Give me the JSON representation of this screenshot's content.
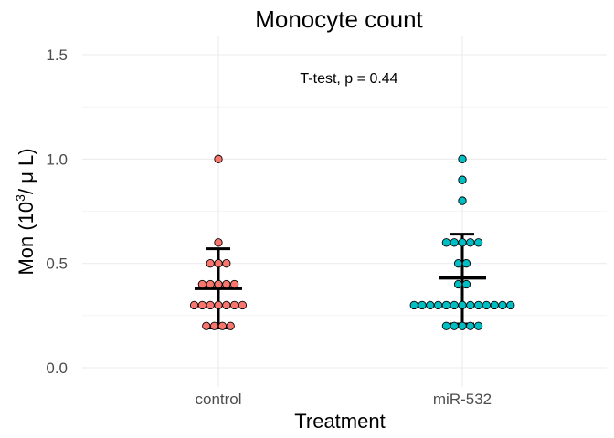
{
  "chart_data": {
    "type": "scatter",
    "title": "Monocyte count",
    "xlabel": "Treatment",
    "ylabel": {
      "prefix": "Mon (10",
      "sup": "3",
      "suffix": "/ μ L)"
    },
    "annotation": "T-test, p = 0.44",
    "categories": [
      "control",
      "miR-532"
    ],
    "ylim": [
      0,
      1.5
    ],
    "yticks": [
      "0.0",
      "0.5",
      "1.0",
      "1.5"
    ],
    "grid": true,
    "legend": "none",
    "colors": {
      "control": "#F8766D",
      "miR-532": "#00BFC4",
      "summary": "#000000",
      "outline": "#000000"
    },
    "series": [
      {
        "category": "control",
        "values": [
          0.2,
          0.2,
          0.2,
          0.2,
          0.3,
          0.3,
          0.3,
          0.3,
          0.3,
          0.3,
          0.3,
          0.4,
          0.4,
          0.4,
          0.4,
          0.4,
          0.5,
          0.5,
          0.5,
          0.6,
          1.0
        ],
        "mean": 0.38,
        "error_low": 0.19,
        "error_high": 0.57
      },
      {
        "category": "miR-532",
        "values": [
          0.2,
          0.2,
          0.2,
          0.2,
          0.2,
          0.3,
          0.3,
          0.3,
          0.3,
          0.3,
          0.3,
          0.3,
          0.3,
          0.3,
          0.3,
          0.3,
          0.3,
          0.3,
          0.4,
          0.4,
          0.5,
          0.5,
          0.6,
          0.6,
          0.6,
          0.6,
          0.6,
          0.8,
          0.9,
          1.0
        ],
        "mean": 0.43,
        "error_low": 0.21,
        "error_high": 0.64
      }
    ]
  }
}
